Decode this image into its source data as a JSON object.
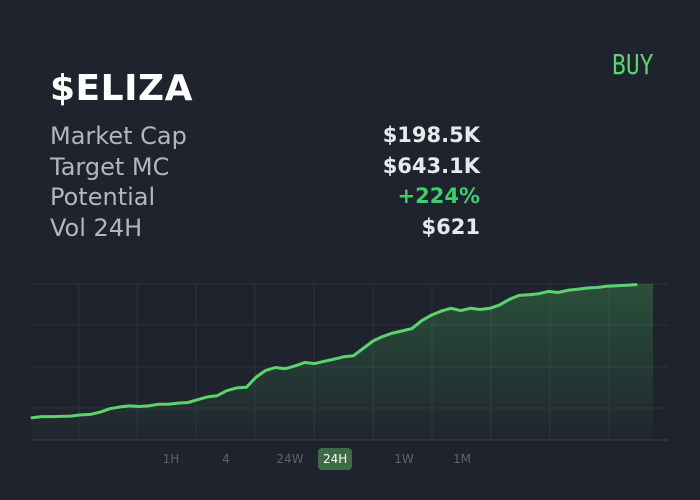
{
  "token": {
    "symbol": "$ELIZA"
  },
  "actions": {
    "buy_label": "BUY"
  },
  "stats": [
    {
      "label": "Market Cap",
      "value": "$198.5K",
      "positive": false
    },
    {
      "label": "Target MC",
      "value": "$643.1K",
      "positive": false
    },
    {
      "label": "Potential",
      "value": "+224%",
      "positive": true
    },
    {
      "label": "Vol 24H",
      "value": "$621",
      "positive": false
    }
  ],
  "timeframes": {
    "items": [
      "1H",
      "4",
      "24W",
      "24H",
      "1W",
      "1M"
    ],
    "selected": "24H"
  },
  "colors": {
    "background": "#1f232d",
    "accent_green": "#5bd46e",
    "positive": "#3ccf6b",
    "line": "#5bd46e",
    "selected_timeframe_bg": "#3f6a46"
  },
  "chart_data": {
    "type": "area",
    "title": "",
    "xlabel": "",
    "ylabel": "",
    "grid": true,
    "x": [
      0,
      1,
      2,
      3,
      4,
      5,
      6,
      7,
      8,
      9,
      10,
      11,
      12,
      13,
      14,
      15,
      16,
      17,
      18,
      19,
      20,
      21,
      22,
      23,
      24,
      25,
      26,
      27,
      28,
      29,
      30,
      31,
      32,
      33,
      34,
      35,
      36,
      37,
      38,
      39,
      40,
      41,
      42,
      43,
      44,
      45,
      46,
      47,
      48,
      49,
      50,
      51,
      52,
      53,
      54,
      55,
      56,
      57,
      58,
      59,
      60,
      61,
      62
    ],
    "series": [
      {
        "values": [
          2.0,
          3.0,
          3.0,
          3.2,
          3.5,
          4.5,
          5.0,
          7.0,
          10.0,
          11.5,
          12.5,
          12.0,
          12.5,
          14.0,
          14.0,
          15.0,
          15.5,
          18.0,
          20.5,
          21.5,
          26.0,
          28.5,
          29.0,
          38.0,
          44.0,
          46.5,
          45.5,
          48.0,
          51.0,
          50.0,
          52.0,
          54.0,
          56.0,
          57.0,
          63.5,
          70.0,
          74.0,
          77.0,
          79.0,
          81.0,
          88.0,
          93.0,
          96.5,
          99.0,
          97.0,
          99.0,
          98.0,
          99.0,
          102.0,
          107.0,
          110.5,
          111.0,
          112.0,
          114.0,
          113.0,
          115.0,
          116.0,
          117.0,
          117.5,
          118.5,
          119.0,
          119.5,
          120.0
        ]
      }
    ],
    "ylim": [
      0,
      125
    ]
  }
}
